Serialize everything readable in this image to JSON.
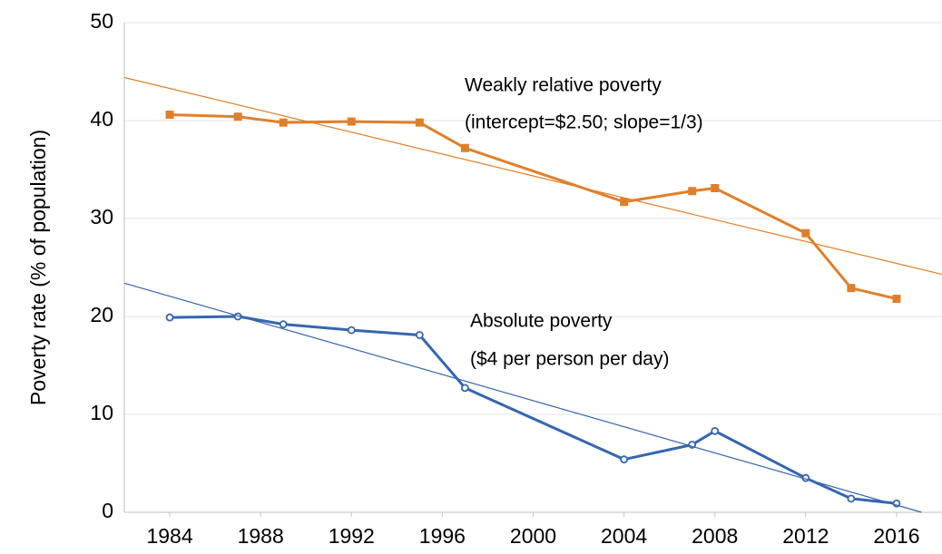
{
  "chart_data": {
    "type": "line",
    "y_label": "Poverty rate (% of population)",
    "xlim": [
      1982,
      2018
    ],
    "xticks": [
      1984,
      1988,
      1992,
      1996,
      2000,
      2004,
      2008,
      2012,
      2016
    ],
    "ylim": [
      0,
      50
    ],
    "yticks": [
      0,
      10,
      20,
      30,
      40,
      50
    ],
    "grid": true,
    "annotations": [
      "Weakly relative poverty",
      "(intercept=$2.50; slope=1/3)",
      "Absolute poverty",
      "($4 per person per day)"
    ],
    "series": [
      {
        "color": "#e07f2a",
        "marker": "square",
        "x": [
          1984,
          1987,
          1989,
          1992,
          1995,
          1997,
          2004,
          2007,
          2008,
          2012,
          2014,
          2016
        ],
        "values": [
          40.6,
          40.4,
          39.8,
          39.9,
          39.8,
          37.2,
          31.7,
          32.8,
          33.1,
          28.5,
          22.9,
          21.8
        ]
      },
      {
        "color": "#3566b0",
        "marker": "circle",
        "x": [
          1984,
          1987,
          1989,
          1992,
          1995,
          1997,
          2004,
          2007,
          2008,
          2012,
          2014,
          2016
        ],
        "values": [
          19.9,
          20.0,
          19.2,
          18.6,
          18.1,
          12.7,
          5.4,
          6.9,
          8.3,
          3.5,
          1.4,
          0.9
        ]
      },
      {
        "color": "#e07f2a",
        "marker": "none",
        "x": [
          1982,
          2018
        ],
        "values": [
          44.4,
          24.3
        ]
      },
      {
        "color": "#3566b0",
        "marker": "none",
        "x": [
          1982,
          2017.1
        ],
        "values": [
          23.4,
          0
        ]
      }
    ]
  }
}
